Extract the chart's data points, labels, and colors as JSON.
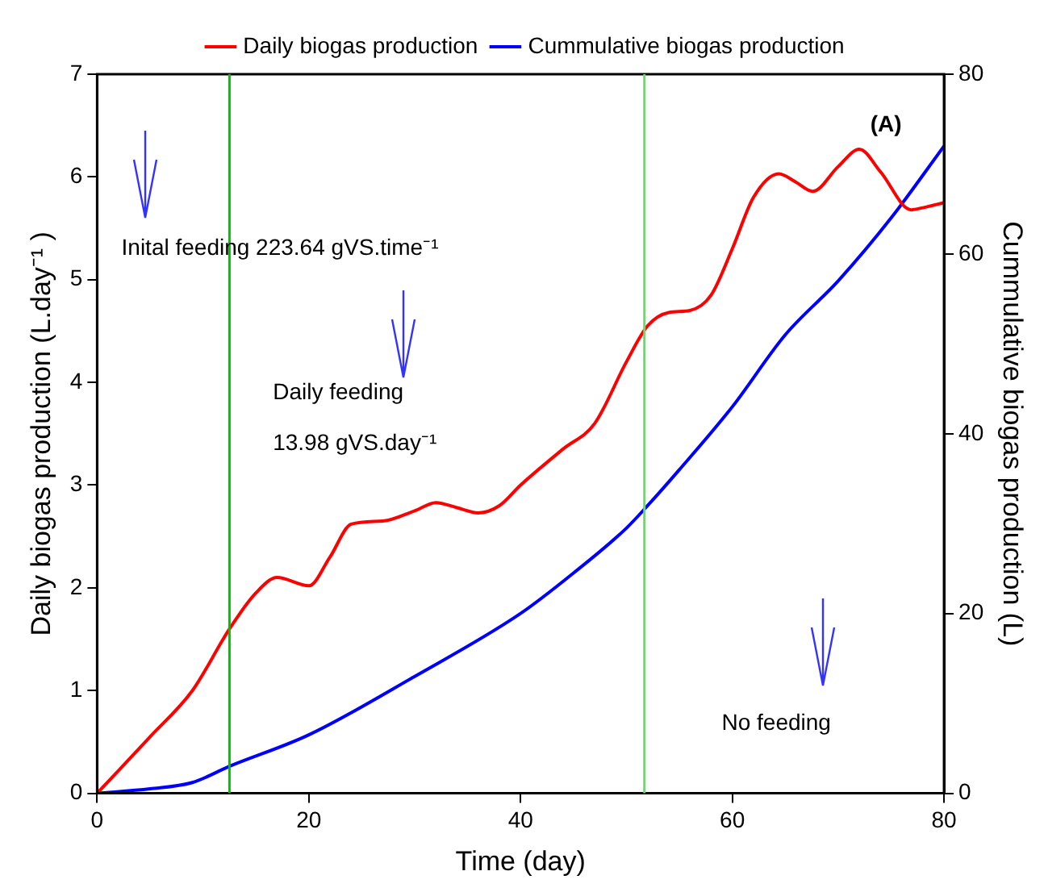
{
  "chart_data": {
    "type": "line",
    "xlabel": "Time (day)",
    "ylabel": "Daily biogas production (L.day⁻¹ )",
    "y2label": "Cummulative biogas production (L)",
    "xlim": [
      0,
      80
    ],
    "xticks": [
      0,
      20,
      40,
      60,
      80
    ],
    "ylim": [
      0,
      7
    ],
    "yticks": [
      0,
      1,
      2,
      3,
      4,
      5,
      6,
      7
    ],
    "y2lim": [
      0,
      80
    ],
    "y2ticks": [
      0,
      20,
      40,
      60,
      80
    ],
    "grid": false,
    "legend": "top",
    "marker": "none",
    "line_style": "solid",
    "series": [
      {
        "name": "Daily biogas production",
        "color": "#ff0000",
        "x": [
          0,
          5,
          9,
          12.5,
          15,
          17,
          20,
          22,
          24,
          27,
          30,
          32,
          34,
          36,
          38,
          40,
          44,
          47,
          50,
          52,
          54,
          56,
          58,
          60,
          62,
          64.4,
          66,
          67.6,
          70,
          72,
          74,
          76.9,
          78,
          80
        ],
        "values": [
          0,
          0.55,
          1.0,
          1.6,
          1.95,
          2.1,
          2.02,
          2.3,
          2.62,
          2.65,
          2.75,
          2.83,
          2.78,
          2.73,
          2.8,
          3.0,
          3.35,
          3.6,
          4.2,
          4.55,
          4.68,
          4.7,
          4.85,
          5.3,
          5.8,
          6.03,
          5.95,
          5.86,
          6.1,
          6.27,
          6.05,
          5.68,
          5.7,
          5.75
        ]
      },
      {
        "name": "Cummulative biogas production",
        "color": "#0000ff",
        "axis": "y2",
        "x": [
          0,
          5,
          9,
          12.5,
          20,
          30,
          40,
          45,
          50,
          52,
          55,
          60,
          65,
          70,
          75,
          80
        ],
        "values": [
          0,
          0.5,
          1.2,
          3,
          6.5,
          13,
          20,
          24.5,
          29.5,
          32,
          36,
          43,
          51,
          57,
          64,
          72
        ]
      }
    ],
    "ref_lines": [
      {
        "axis": "x",
        "value": 12.5,
        "color": "#00c000"
      },
      {
        "axis": "x",
        "value": 51.7,
        "color": "#66dd66"
      }
    ],
    "annotations": [
      "Inital feeding 223.64 gVS.time⁻¹",
      "Daily feeding",
      "13.98 gVS.day⁻¹",
      "No feeding",
      "(A)"
    ]
  }
}
